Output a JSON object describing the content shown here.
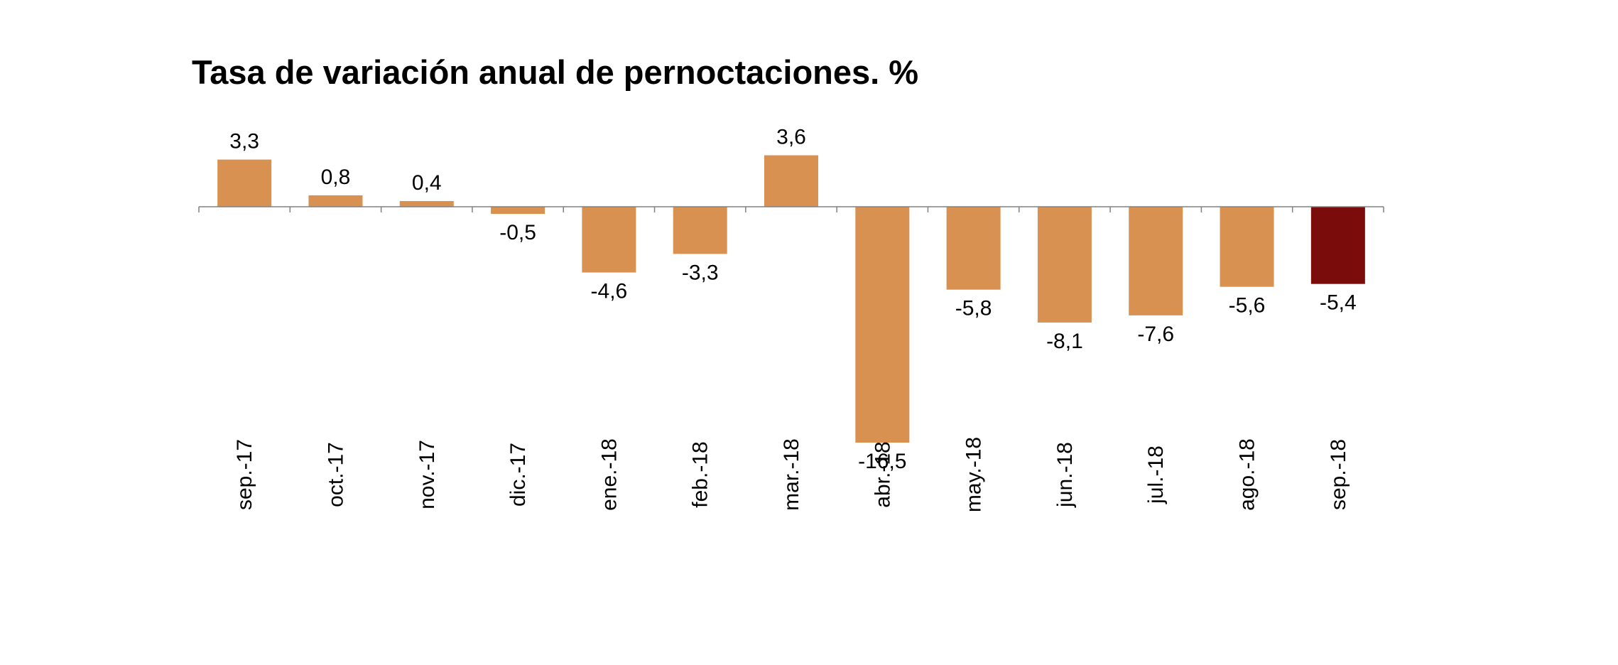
{
  "chart_data": {
    "type": "bar",
    "title": "Tasa de variación anual de pernoctaciones. %",
    "categories": [
      "sep.-17",
      "oct.-17",
      "nov.-17",
      "dic.-17",
      "ene.-18",
      "feb.-18",
      "mar.-18",
      "abr.-18",
      "may.-18",
      "jun.-18",
      "jul.-18",
      "ago.-18",
      "sep.-18"
    ],
    "values": [
      3.3,
      0.8,
      0.4,
      -0.5,
      -4.6,
      -3.3,
      3.6,
      -16.5,
      -5.8,
      -8.1,
      -7.6,
      -5.6,
      -5.4
    ],
    "value_labels": [
      "3,3",
      "0,8",
      "0,4",
      "-0,5",
      "-4,6",
      "-3,3",
      "3,6",
      "-16,5",
      "-5,8",
      "-8,1",
      "-7,6",
      "-5,6",
      "-5,4"
    ],
    "xlabel": "",
    "ylabel": "",
    "ylim": [
      -16.5,
      3.6
    ],
    "grid": false,
    "legend": "none",
    "colors": {
      "bar": "#D99152",
      "highlight": "#7B0C0C",
      "axis": "#808080"
    },
    "highlight_index": 12
  }
}
